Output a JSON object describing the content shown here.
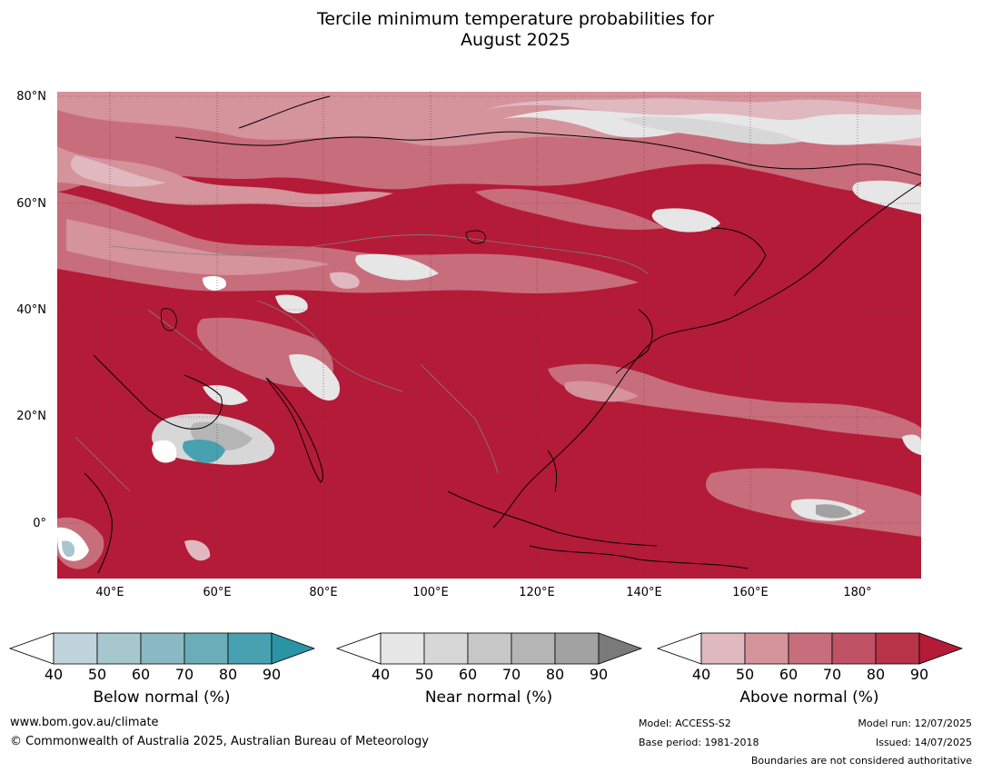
{
  "title": {
    "line1": "Tercile minimum temperature probabilities for",
    "line2": "August 2025"
  },
  "map": {
    "lat_labels": [
      "80°N",
      "60°N",
      "40°N",
      "20°N",
      "0°"
    ],
    "lon_labels": [
      "40°E",
      "60°E",
      "80°E",
      "100°E",
      "120°E",
      "140°E",
      "160°E",
      "180°"
    ],
    "lon_range": [
      30,
      192
    ],
    "lat_range": [
      -10,
      81
    ],
    "background_color": "#b31b38"
  },
  "colorbars": [
    {
      "title": "Below normal (%)",
      "ticks": [
        "40",
        "50",
        "60",
        "70",
        "80",
        "90"
      ],
      "colors": [
        "#ffffff",
        "#bfd4db",
        "#a7c7ce",
        "#8ab9c3",
        "#6badb9",
        "#48a1b0",
        "#2b93a6"
      ]
    },
    {
      "title": "Near normal (%)",
      "ticks": [
        "40",
        "50",
        "60",
        "70",
        "80",
        "90"
      ],
      "colors": [
        "#ffffff",
        "#e6e6e6",
        "#d7d7d7",
        "#c7c7c7",
        "#b5b5b5",
        "#a2a2a2",
        "#7a7a7a"
      ]
    },
    {
      "title": "Above normal (%)",
      "ticks": [
        "40",
        "50",
        "60",
        "70",
        "80",
        "90"
      ],
      "colors": [
        "#ffffff",
        "#e0b8c0",
        "#d5939c",
        "#c86d7b",
        "#bf5264",
        "#b83348",
        "#b31b38"
      ]
    }
  ],
  "footer": {
    "url": "www.bom.gov.au/climate",
    "copyright": "© Commonwealth of Australia 2025, Australian Bureau of Meteorology",
    "model": "Model: ACCESS-S2",
    "base_period": "Base period: 1981-2018",
    "model_run": "Model run: 12/07/2025",
    "issued": "Issued: 14/07/2025",
    "disclaimer": "Boundaries are not considered authoritative"
  }
}
